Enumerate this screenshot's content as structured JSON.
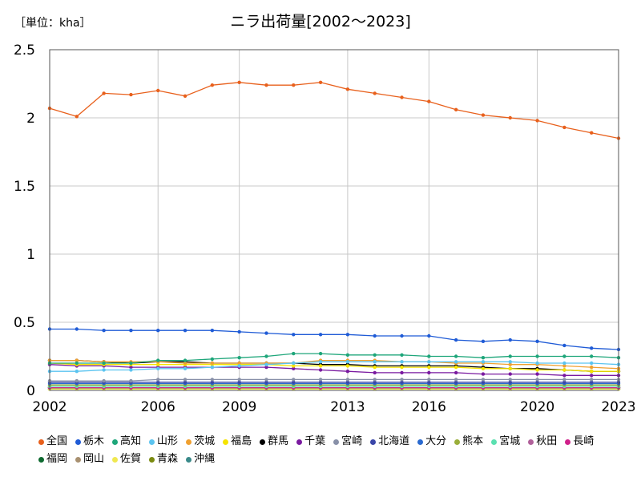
{
  "unit_label": "［単位：kha］",
  "chart_data": {
    "type": "line",
    "title": "ニラ出荷量[2002～2023]",
    "xlabel": "",
    "ylabel": "",
    "xlim": [
      2002,
      2023
    ],
    "ylim": [
      0,
      2.5
    ],
    "x_ticks": [
      2002,
      2006,
      2009,
      2013,
      2016,
      2020,
      2023
    ],
    "y_ticks": [
      0,
      0.5,
      1,
      1.5,
      2,
      2.5
    ],
    "y_tick_labels": [
      "0",
      "0.5",
      "1",
      "1.5",
      "2",
      "2.5"
    ],
    "grid": true,
    "legend_position": "bottom",
    "x": [
      2002,
      2003,
      2004,
      2005,
      2006,
      2007,
      2008,
      2009,
      2010,
      2011,
      2012,
      2013,
      2014,
      2015,
      2016,
      2017,
      2018,
      2019,
      2020,
      2021,
      2022,
      2023
    ],
    "series": [
      {
        "name": "全国",
        "color": "#e8601c",
        "values": [
          2.07,
          2.01,
          2.18,
          2.17,
          2.2,
          2.16,
          2.24,
          2.26,
          2.24,
          2.24,
          2.26,
          2.21,
          2.18,
          2.15,
          2.12,
          2.06,
          2.02,
          2.0,
          1.98,
          1.93,
          1.89,
          1.85
        ]
      },
      {
        "name": "栃木",
        "color": "#1f5bd6",
        "values": [
          0.45,
          0.45,
          0.44,
          0.44,
          0.44,
          0.44,
          0.44,
          0.43,
          0.42,
          0.41,
          0.41,
          0.41,
          0.4,
          0.4,
          0.4,
          0.37,
          0.36,
          0.37,
          0.36,
          0.33,
          0.31,
          0.3
        ]
      },
      {
        "name": "高知",
        "color": "#1ea67a",
        "values": [
          0.2,
          0.2,
          0.2,
          0.2,
          0.22,
          0.22,
          0.23,
          0.24,
          0.25,
          0.27,
          0.27,
          0.26,
          0.26,
          0.26,
          0.25,
          0.25,
          0.24,
          0.25,
          0.25,
          0.25,
          0.25,
          0.24
        ]
      },
      {
        "name": "山形",
        "color": "#5bc4f0",
        "values": [
          0.14,
          0.14,
          0.15,
          0.15,
          0.16,
          0.16,
          0.17,
          0.18,
          0.19,
          0.2,
          0.21,
          0.21,
          0.21,
          0.21,
          0.21,
          0.21,
          0.21,
          0.21,
          0.2,
          0.2,
          0.2,
          0.19
        ]
      },
      {
        "name": "茨城",
        "color": "#f0a030",
        "values": [
          0.22,
          0.22,
          0.21,
          0.21,
          0.21,
          0.2,
          0.2,
          0.2,
          0.2,
          0.2,
          0.22,
          0.22,
          0.22,
          0.21,
          0.21,
          0.2,
          0.2,
          0.19,
          0.19,
          0.18,
          0.17,
          0.16
        ]
      },
      {
        "name": "福島",
        "color": "#f5e400",
        "values": [
          0.2,
          0.19,
          0.19,
          0.19,
          0.19,
          0.19,
          0.19,
          0.19,
          0.19,
          0.18,
          0.18,
          0.18,
          0.17,
          0.17,
          0.17,
          0.17,
          0.16,
          0.16,
          0.15,
          0.15,
          0.14,
          0.14
        ]
      },
      {
        "name": "群馬",
        "color": "#000000",
        "values": [
          0.22,
          0.22,
          0.21,
          0.2,
          0.21,
          0.21,
          0.2,
          0.2,
          0.2,
          0.2,
          0.19,
          0.19,
          0.18,
          0.18,
          0.18,
          0.18,
          0.17,
          0.16,
          0.16,
          0.15,
          0.14,
          0.14
        ]
      },
      {
        "name": "千葉",
        "color": "#7a1aa0",
        "values": [
          0.19,
          0.18,
          0.18,
          0.17,
          0.17,
          0.17,
          0.17,
          0.17,
          0.17,
          0.16,
          0.15,
          0.14,
          0.13,
          0.13,
          0.13,
          0.13,
          0.12,
          0.12,
          0.12,
          0.11,
          0.11,
          0.11
        ]
      },
      {
        "name": "宮崎",
        "color": "#8890a8",
        "values": [
          0.07,
          0.07,
          0.07,
          0.07,
          0.08,
          0.08,
          0.08,
          0.08,
          0.08,
          0.08,
          0.08,
          0.08,
          0.08,
          0.08,
          0.08,
          0.08,
          0.08,
          0.08,
          0.08,
          0.08,
          0.08,
          0.08
        ]
      },
      {
        "name": "北海道",
        "color": "#3a46a8",
        "values": [
          0.06,
          0.06,
          0.06,
          0.06,
          0.06,
          0.06,
          0.06,
          0.06,
          0.06,
          0.06,
          0.06,
          0.06,
          0.06,
          0.06,
          0.06,
          0.06,
          0.06,
          0.06,
          0.06,
          0.06,
          0.06,
          0.06
        ]
      },
      {
        "name": "大分",
        "color": "#2a6ad0",
        "values": [
          0.05,
          0.05,
          0.05,
          0.05,
          0.05,
          0.05,
          0.05,
          0.05,
          0.05,
          0.05,
          0.05,
          0.05,
          0.05,
          0.05,
          0.05,
          0.05,
          0.05,
          0.05,
          0.05,
          0.05,
          0.05,
          0.05
        ]
      },
      {
        "name": "熊本",
        "color": "#9aae3a",
        "values": [
          0.04,
          0.04,
          0.04,
          0.04,
          0.04,
          0.04,
          0.04,
          0.04,
          0.04,
          0.04,
          0.04,
          0.04,
          0.04,
          0.04,
          0.04,
          0.04,
          0.04,
          0.04,
          0.04,
          0.04,
          0.04,
          0.04
        ]
      },
      {
        "name": "宮城",
        "color": "#5ae0b0",
        "values": [
          0.03,
          0.03,
          0.03,
          0.03,
          0.03,
          0.03,
          0.03,
          0.03,
          0.03,
          0.03,
          0.03,
          0.03,
          0.03,
          0.03,
          0.03,
          0.03,
          0.03,
          0.03,
          0.03,
          0.03,
          0.03,
          0.03
        ]
      },
      {
        "name": "秋田",
        "color": "#b0609a",
        "values": [
          0.03,
          0.03,
          0.03,
          0.03,
          0.03,
          0.03,
          0.03,
          0.03,
          0.03,
          0.03,
          0.03,
          0.03,
          0.03,
          0.03,
          0.03,
          0.03,
          0.03,
          0.03,
          0.03,
          0.03,
          0.03,
          0.03
        ]
      },
      {
        "name": "長崎",
        "color": "#d0208a",
        "values": [
          0.02,
          0.02,
          0.02,
          0.02,
          0.02,
          0.02,
          0.02,
          0.02,
          0.02,
          0.02,
          0.02,
          0.02,
          0.02,
          0.02,
          0.02,
          0.02,
          0.02,
          0.02,
          0.02,
          0.02,
          0.02,
          0.02
        ]
      },
      {
        "name": "福岡",
        "color": "#0e6a30",
        "values": [
          0.02,
          0.02,
          0.02,
          0.02,
          0.02,
          0.02,
          0.02,
          0.02,
          0.02,
          0.02,
          0.02,
          0.02,
          0.02,
          0.02,
          0.02,
          0.02,
          0.02,
          0.02,
          0.02,
          0.02,
          0.02,
          0.02
        ]
      },
      {
        "name": "岡山",
        "color": "#a89070",
        "values": [
          0.02,
          0.02,
          0.02,
          0.02,
          0.02,
          0.02,
          0.02,
          0.02,
          0.02,
          0.02,
          0.02,
          0.02,
          0.02,
          0.02,
          0.02,
          0.02,
          0.02,
          0.02,
          0.02,
          0.02,
          0.02,
          0.02
        ]
      },
      {
        "name": "佐賀",
        "color": "#f0e850",
        "values": [
          0.01,
          0.01,
          0.01,
          0.01,
          0.01,
          0.01,
          0.01,
          0.01,
          0.01,
          0.01,
          0.01,
          0.01,
          0.01,
          0.01,
          0.01,
          0.01,
          0.01,
          0.01,
          0.01,
          0.01,
          0.01,
          0.01
        ]
      },
      {
        "name": "青森",
        "color": "#7a8a10",
        "values": [
          0.01,
          0.01,
          0.01,
          0.01,
          0.01,
          0.01,
          0.01,
          0.01,
          0.01,
          0.01,
          0.01,
          0.01,
          0.01,
          0.01,
          0.01,
          0.01,
          0.01,
          0.01,
          0.01,
          0.01,
          0.01,
          0.01
        ]
      },
      {
        "name": "沖縄",
        "color": "#3a8a8a",
        "values": [
          0.01,
          0.01,
          0.01,
          0.01,
          0.01,
          0.01,
          0.01,
          0.01,
          0.01,
          0.01,
          0.01,
          0.01,
          0.01,
          0.01,
          0.01,
          0.01,
          0.01,
          0.01,
          0.01,
          0.01,
          0.01,
          0.01
        ]
      }
    ]
  }
}
